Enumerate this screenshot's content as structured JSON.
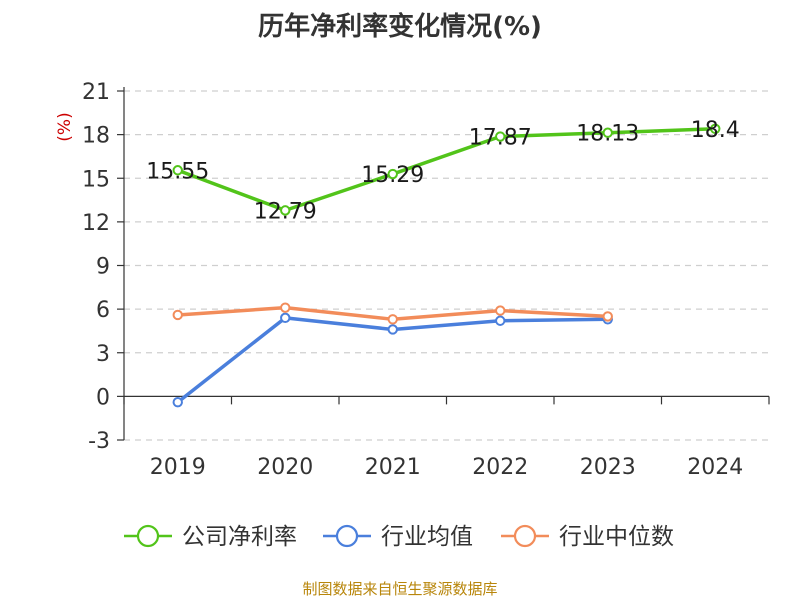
{
  "title": "历年净利率变化情况(%)",
  "source": "制图数据来自恒生聚源数据库",
  "chart_data": {
    "type": "line",
    "title": "历年净利率变化情况(%)",
    "ylabel": "(%)",
    "xlabel": "",
    "categories": [
      "2019",
      "2020",
      "2021",
      "2022",
      "2023",
      "2024"
    ],
    "ylim": [
      -3,
      21
    ],
    "yticks": [
      -3,
      0,
      3,
      6,
      9,
      12,
      15,
      18,
      21
    ],
    "grid": true,
    "legend_position": "bottom",
    "series": [
      {
        "name": "公司净利率",
        "color": "#52c41a",
        "values": [
          15.55,
          12.79,
          15.29,
          17.87,
          18.13,
          18.4
        ],
        "labels": [
          "15.55",
          "12.79",
          "15.29",
          "17.87",
          "18.13",
          "18.4"
        ]
      },
      {
        "name": "行业均值",
        "color": "#4a7fdc",
        "values": [
          -0.4,
          5.4,
          4.6,
          5.2,
          5.3,
          null
        ]
      },
      {
        "name": "行业中位数",
        "color": "#f28c5a",
        "values": [
          5.6,
          6.1,
          5.3,
          5.9,
          5.5,
          null
        ]
      }
    ]
  }
}
